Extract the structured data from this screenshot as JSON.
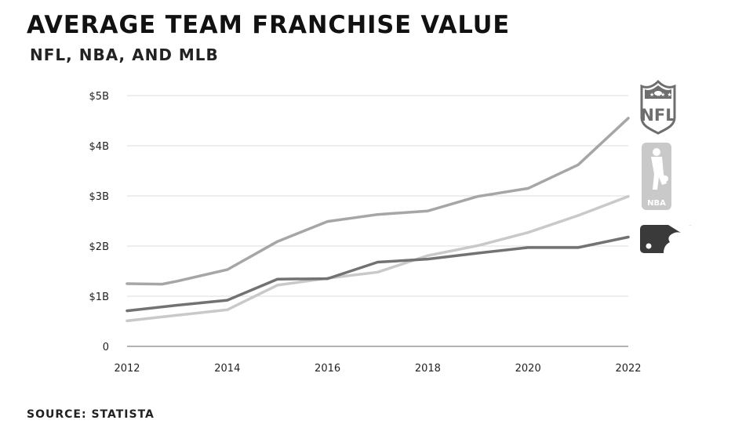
{
  "header": {
    "title": "AVERAGE TEAM FRANCHISE VALUE",
    "subtitle": "NFL, NBA, AND MLB"
  },
  "footer": {
    "source": "SOURCE: STATISTA"
  },
  "logos": {
    "nfl": {
      "icon": "nfl-shield-logo",
      "text": "NFL"
    },
    "nba": {
      "icon": "nba-logo",
      "text": "NBA"
    },
    "mlb": {
      "icon": "mlb-logo"
    }
  },
  "colors": {
    "grid": "#dcdcdc",
    "axis": "#9a9a9a"
  },
  "chart_data": {
    "type": "line",
    "title": "AVERAGE TEAM FRANCHISE VALUE",
    "subtitle": "NFL, NBA, AND MLB",
    "xlim": [
      2012,
      2022
    ],
    "ylim": [
      0,
      5
    ],
    "x_ticks": [
      2012,
      2014,
      2016,
      2018,
      2020,
      2022
    ],
    "x_tick_labels": [
      "2012",
      "2014",
      "2016",
      "2018",
      "2020",
      "2022"
    ],
    "y_ticks": [
      0,
      1,
      2,
      3,
      4,
      5
    ],
    "y_tick_labels": [
      "0",
      "$1B",
      "$2B",
      "$3B",
      "$4B",
      "$5B"
    ],
    "grid": true,
    "series": [
      {
        "name": "NFL",
        "color": "#a6a6a6",
        "x": [
          2012,
          2012.7,
          2013,
          2014,
          2015,
          2016,
          2017,
          2018,
          2019,
          2020,
          2021,
          2022
        ],
        "y": [
          1.25,
          1.24,
          1.3,
          1.53,
          2.09,
          2.49,
          2.63,
          2.7,
          2.99,
          3.15,
          3.62,
          4.55
        ]
      },
      {
        "name": "NBA",
        "color": "#c9c9c9",
        "x": [
          2012,
          2013,
          2014,
          2015,
          2016,
          2017,
          2018,
          2019,
          2020,
          2021,
          2022
        ],
        "y": [
          0.51,
          0.62,
          0.73,
          1.22,
          1.36,
          1.48,
          1.81,
          2.01,
          2.27,
          2.61,
          2.99
        ]
      },
      {
        "name": "MLB",
        "color": "#727272",
        "x": [
          2012,
          2013,
          2014,
          2015,
          2016,
          2017,
          2018,
          2019,
          2020,
          2021,
          2022
        ],
        "y": [
          0.71,
          0.82,
          0.92,
          1.34,
          1.35,
          1.68,
          1.74,
          1.86,
          1.97,
          1.97,
          2.18
        ]
      }
    ]
  }
}
